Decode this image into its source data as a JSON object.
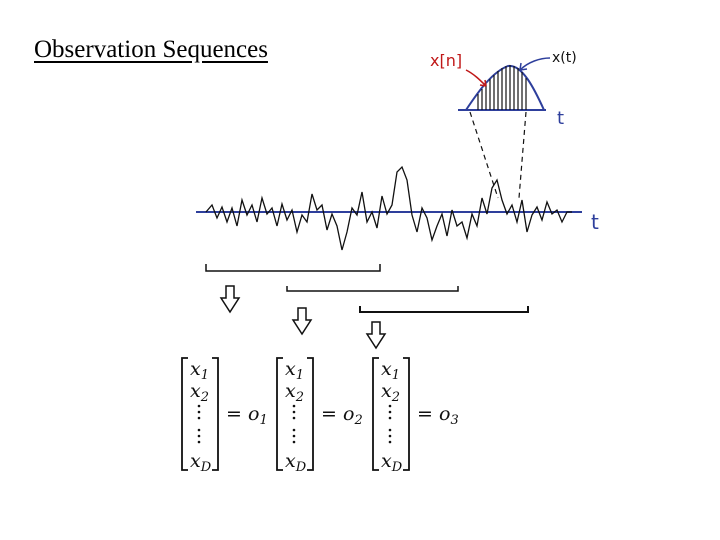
{
  "slide": {
    "title": "Observation Sequences"
  },
  "sketch": {
    "discrete_label": "x[n]",
    "continuous_label": "x(t)",
    "time_label_top": "t",
    "time_label_main": "t"
  },
  "vectors": [
    {
      "entries": [
        "x",
        "x",
        "x"
      ],
      "subscripts": [
        "1",
        "2",
        "D"
      ],
      "equals": "=",
      "symbol": "o",
      "index": "1"
    },
    {
      "entries": [
        "x",
        "x",
        "x"
      ],
      "subscripts": [
        "1",
        "2",
        "D"
      ],
      "equals": "=",
      "symbol": "o",
      "index": "2"
    },
    {
      "entries": [
        "x",
        "x",
        "x"
      ],
      "subscripts": [
        "1",
        "2",
        "D"
      ],
      "equals": "=",
      "symbol": "o",
      "index": "3"
    }
  ],
  "colors": {
    "axis": "#2e3f9c",
    "ink": "#111111",
    "annotation": "#c01818"
  }
}
